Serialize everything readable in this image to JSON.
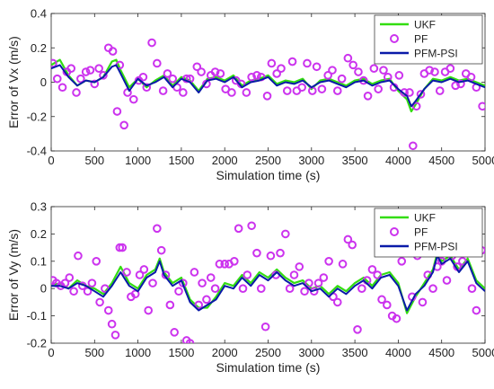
{
  "colors": {
    "ukf": "#33dd11",
    "pf": "#cc33ee",
    "pfm_psi": "#0a1aa8",
    "axis": "#262626"
  },
  "chart_data": [
    {
      "type": "line",
      "xlabel": "Simulation time (s)",
      "ylabel": "Error of Vx  (m/s)",
      "xlim": [
        0,
        5000
      ],
      "ylim": [
        -0.4,
        0.4
      ],
      "xticks": [
        0,
        500,
        1000,
        1500,
        2000,
        2500,
        3000,
        3500,
        4000,
        4500,
        5000
      ],
      "yticks": [
        -0.4,
        -0.2,
        0,
        0.2,
        0.4
      ],
      "ytick_labels": [
        "-0.4",
        "-0.2",
        "0",
        "0.2",
        "0.4"
      ],
      "grid": false,
      "legend_position": "top-right",
      "series": [
        {
          "name": "UKF",
          "style": "line",
          "x": [
            0,
            100,
            200,
            300,
            400,
            500,
            600,
            700,
            750,
            800,
            900,
            1000,
            1100,
            1200,
            1300,
            1400,
            1500,
            1600,
            1700,
            1800,
            1900,
            2000,
            2100,
            2200,
            2300,
            2400,
            2500,
            2600,
            2700,
            2800,
            2900,
            3000,
            3100,
            3200,
            3300,
            3400,
            3500,
            3600,
            3700,
            3800,
            3900,
            4000,
            4100,
            4150,
            4200,
            4300,
            4400,
            4500,
            4600,
            4700,
            4800,
            4900,
            5000
          ],
          "y": [
            0.1,
            0.13,
            0.04,
            -0.02,
            0.01,
            0.0,
            0.03,
            0.12,
            0.13,
            0.07,
            -0.03,
            0.02,
            -0.03,
            0.01,
            0.04,
            -0.02,
            0.03,
            0.01,
            -0.05,
            0.02,
            0.03,
            0.01,
            0.04,
            -0.02,
            0.01,
            0.02,
            0.04,
            -0.01,
            0.01,
            0.0,
            0.02,
            -0.04,
            0.01,
            0.02,
            0.0,
            -0.02,
            0.01,
            0.02,
            -0.01,
            0.01,
            0.02,
            -0.05,
            -0.1,
            -0.17,
            -0.13,
            -0.04,
            0.02,
            0.01,
            0.03,
            0.01,
            0.02,
            0.0,
            -0.02
          ]
        },
        {
          "name": "PF",
          "style": "markers",
          "x": [
            20,
            70,
            130,
            180,
            230,
            290,
            340,
            400,
            450,
            500,
            550,
            600,
            660,
            710,
            760,
            790,
            840,
            880,
            950,
            1010,
            1060,
            1100,
            1160,
            1220,
            1290,
            1340,
            1400,
            1450,
            1520,
            1560,
            1600,
            1680,
            1730,
            1790,
            1840,
            1890,
            1950,
            2010,
            2080,
            2130,
            2190,
            2250,
            2310,
            2370,
            2420,
            2490,
            2540,
            2600,
            2650,
            2720,
            2780,
            2830,
            2890,
            2950,
            3010,
            3060,
            3120,
            3190,
            3240,
            3300,
            3350,
            3420,
            3480,
            3540,
            3600,
            3650,
            3720,
            3770,
            3830,
            3880,
            3950,
            4010,
            4070,
            4130,
            4170,
            4210,
            4260,
            4300,
            4360,
            4420,
            4480,
            4540,
            4600,
            4660,
            4720,
            4780,
            4840,
            4900,
            4970
          ],
          "y": [
            0.11,
            0.02,
            -0.03,
            0.06,
            0.08,
            -0.06,
            0.02,
            0.06,
            0.07,
            -0.01,
            0.08,
            0.04,
            0.2,
            0.18,
            -0.17,
            0.1,
            -0.25,
            -0.06,
            -0.1,
            0.01,
            0.03,
            -0.03,
            0.23,
            0.11,
            -0.05,
            0.05,
            0.02,
            -0.03,
            -0.06,
            0.02,
            0.02,
            0.09,
            0.06,
            -0.01,
            0.04,
            0.06,
            0.05,
            -0.04,
            -0.06,
            0.01,
            -0.01,
            -0.06,
            0.03,
            0.04,
            0.03,
            -0.08,
            0.11,
            0.05,
            0.08,
            -0.05,
            0.12,
            -0.05,
            -0.03,
            0.11,
            -0.05,
            0.09,
            -0.04,
            0.04,
            0.07,
            -0.05,
            0.02,
            0.14,
            0.1,
            0.06,
            0.01,
            -0.08,
            0.08,
            -0.04,
            0.07,
            0.03,
            -0.03,
            0.04,
            -0.06,
            -0.06,
            -0.37,
            -0.14,
            -0.07,
            0.05,
            0.07,
            0.06,
            -0.05,
            0.06,
            0.08,
            -0.02,
            -0.01,
            0.05,
            0.03,
            -0.03,
            -0.14
          ]
        },
        {
          "name": "PFM-PSI",
          "style": "line",
          "x": [
            0,
            100,
            200,
            300,
            400,
            500,
            600,
            700,
            750,
            800,
            900,
            1000,
            1100,
            1200,
            1300,
            1400,
            1500,
            1600,
            1700,
            1800,
            1900,
            2000,
            2100,
            2200,
            2300,
            2400,
            2500,
            2600,
            2700,
            2800,
            2900,
            3000,
            3100,
            3200,
            3300,
            3400,
            3500,
            3600,
            3700,
            3800,
            3900,
            4000,
            4100,
            4150,
            4200,
            4300,
            4400,
            4500,
            4600,
            4700,
            4800,
            4900,
            5000
          ],
          "y": [
            0.08,
            0.1,
            0.03,
            -0.02,
            0.01,
            0.0,
            0.03,
            0.09,
            0.1,
            0.05,
            -0.05,
            0.02,
            -0.02,
            0.0,
            0.03,
            -0.03,
            0.02,
            0.0,
            -0.06,
            0.01,
            0.02,
            0.0,
            0.03,
            -0.03,
            0.0,
            0.01,
            0.03,
            -0.02,
            0.0,
            -0.01,
            0.01,
            -0.03,
            0.0,
            0.01,
            -0.01,
            -0.03,
            0.0,
            0.01,
            -0.02,
            0.0,
            0.01,
            -0.04,
            -0.08,
            -0.14,
            -0.11,
            -0.04,
            0.01,
            0.0,
            0.02,
            0.0,
            0.01,
            -0.01,
            -0.03
          ]
        }
      ]
    },
    {
      "type": "line",
      "xlabel": "Simulation time (s)",
      "ylabel": "Error of Vy  (m/s)",
      "xlim": [
        0,
        5000
      ],
      "ylim": [
        -0.2,
        0.3
      ],
      "xticks": [
        0,
        500,
        1000,
        1500,
        2000,
        2500,
        3000,
        3500,
        4000,
        4500,
        5000
      ],
      "yticks": [
        -0.2,
        -0.1,
        0,
        0.1,
        0.2,
        0.3
      ],
      "ytick_labels": [
        "-0.2",
        "-0.1",
        "0",
        "0.1",
        "0.2",
        "0.3"
      ],
      "grid": false,
      "legend_position": "top-right",
      "series": [
        {
          "name": "UKF",
          "style": "line",
          "x": [
            0,
            100,
            200,
            300,
            400,
            500,
            600,
            700,
            800,
            900,
            1000,
            1100,
            1200,
            1250,
            1300,
            1400,
            1500,
            1600,
            1700,
            1800,
            1900,
            2000,
            2100,
            2200,
            2300,
            2400,
            2500,
            2600,
            2700,
            2800,
            2900,
            3000,
            3100,
            3200,
            3300,
            3400,
            3500,
            3600,
            3700,
            3800,
            3900,
            4000,
            4100,
            4200,
            4300,
            4400,
            4450,
            4500,
            4600,
            4700,
            4800,
            4900,
            5000
          ],
          "y": [
            0.01,
            0.02,
            0.0,
            0.03,
            0.01,
            0.0,
            -0.02,
            0.02,
            0.08,
            0.02,
            0.0,
            0.05,
            0.07,
            0.11,
            0.06,
            0.02,
            0.04,
            -0.04,
            -0.07,
            -0.07,
            -0.03,
            0.02,
            0.01,
            0.05,
            0.02,
            0.06,
            0.04,
            0.07,
            0.04,
            0.02,
            0.03,
            0.0,
            0.01,
            -0.02,
            0.01,
            -0.01,
            0.02,
            0.04,
            0.01,
            0.05,
            0.06,
            0.02,
            -0.09,
            -0.03,
            0.02,
            0.07,
            0.13,
            0.1,
            0.12,
            0.07,
            0.11,
            0.03,
            0.0
          ]
        },
        {
          "name": "PF",
          "style": "markers",
          "x": [
            20,
            60,
            110,
            160,
            210,
            260,
            310,
            360,
            420,
            470,
            520,
            560,
            620,
            660,
            700,
            740,
            790,
            820,
            870,
            920,
            970,
            1020,
            1070,
            1120,
            1170,
            1220,
            1270,
            1320,
            1370,
            1420,
            1470,
            1520,
            1560,
            1600,
            1650,
            1700,
            1740,
            1790,
            1840,
            1890,
            1940,
            2000,
            2050,
            2110,
            2160,
            2210,
            2260,
            2310,
            2370,
            2420,
            2470,
            2530,
            2590,
            2640,
            2700,
            2750,
            2800,
            2860,
            2920,
            2970,
            3030,
            3080,
            3140,
            3200,
            3250,
            3300,
            3360,
            3420,
            3470,
            3530,
            3580,
            3640,
            3700,
            3760,
            3810,
            3870,
            3930,
            3980,
            4040,
            4100,
            4160,
            4220,
            4280,
            4340,
            4400,
            4450,
            4500,
            4560,
            4620,
            4680,
            4740,
            4800,
            4850,
            4900,
            4960
          ],
          "y": [
            0.03,
            0.02,
            0.01,
            0.02,
            0.04,
            -0.01,
            0.12,
            0.01,
            -0.01,
            0.02,
            0.1,
            -0.05,
            0.0,
            -0.08,
            -0.13,
            -0.17,
            0.15,
            0.15,
            0.06,
            -0.03,
            -0.02,
            0.05,
            0.07,
            -0.08,
            0.02,
            0.22,
            0.14,
            0.05,
            -0.06,
            -0.16,
            -0.01,
            0.02,
            -0.19,
            -0.2,
            0.06,
            -0.06,
            0.02,
            -0.04,
            0.04,
            0.0,
            0.09,
            0.09,
            0.09,
            0.1,
            0.22,
            0.0,
            0.05,
            0.23,
            0.13,
            0.0,
            -0.14,
            0.12,
            0.05,
            0.13,
            0.2,
            0.0,
            0.05,
            0.08,
            -0.01,
            0.02,
            -0.01,
            0.02,
            0.04,
            0.1,
            -0.03,
            -0.05,
            0.09,
            0.18,
            0.16,
            -0.15,
            0.0,
            0.03,
            0.07,
            0.05,
            -0.04,
            -0.06,
            -0.1,
            -0.11,
            0.1,
            0.15,
            -0.03,
            0.12,
            -0.05,
            0.05,
            0.0,
            0.08,
            0.1,
            0.03,
            0.12,
            0.08,
            0.1,
            0.13,
            0.0,
            -0.08,
            0.14
          ]
        },
        {
          "name": "PFM-PSI",
          "style": "line",
          "x": [
            0,
            100,
            200,
            300,
            400,
            500,
            600,
            700,
            800,
            900,
            1000,
            1100,
            1200,
            1250,
            1300,
            1400,
            1500,
            1600,
            1700,
            1800,
            1900,
            2000,
            2100,
            2200,
            2300,
            2400,
            2500,
            2600,
            2700,
            2800,
            2900,
            3000,
            3100,
            3200,
            3300,
            3400,
            3500,
            3600,
            3700,
            3800,
            3900,
            4000,
            4100,
            4200,
            4300,
            4400,
            4450,
            4500,
            4600,
            4700,
            4800,
            4900,
            5000
          ],
          "y": [
            0.01,
            0.01,
            0.0,
            0.02,
            0.01,
            -0.01,
            -0.03,
            0.01,
            0.06,
            0.01,
            -0.01,
            0.04,
            0.06,
            0.1,
            0.05,
            0.01,
            0.03,
            -0.05,
            -0.08,
            -0.06,
            -0.04,
            0.01,
            0.0,
            0.04,
            0.01,
            0.05,
            0.03,
            0.06,
            0.03,
            0.01,
            0.02,
            -0.01,
            0.0,
            -0.03,
            0.0,
            -0.02,
            0.01,
            0.03,
            0.0,
            0.04,
            0.05,
            0.01,
            -0.08,
            -0.02,
            0.01,
            0.06,
            0.12,
            0.09,
            0.11,
            0.06,
            0.1,
            0.02,
            -0.01
          ]
        }
      ]
    }
  ]
}
